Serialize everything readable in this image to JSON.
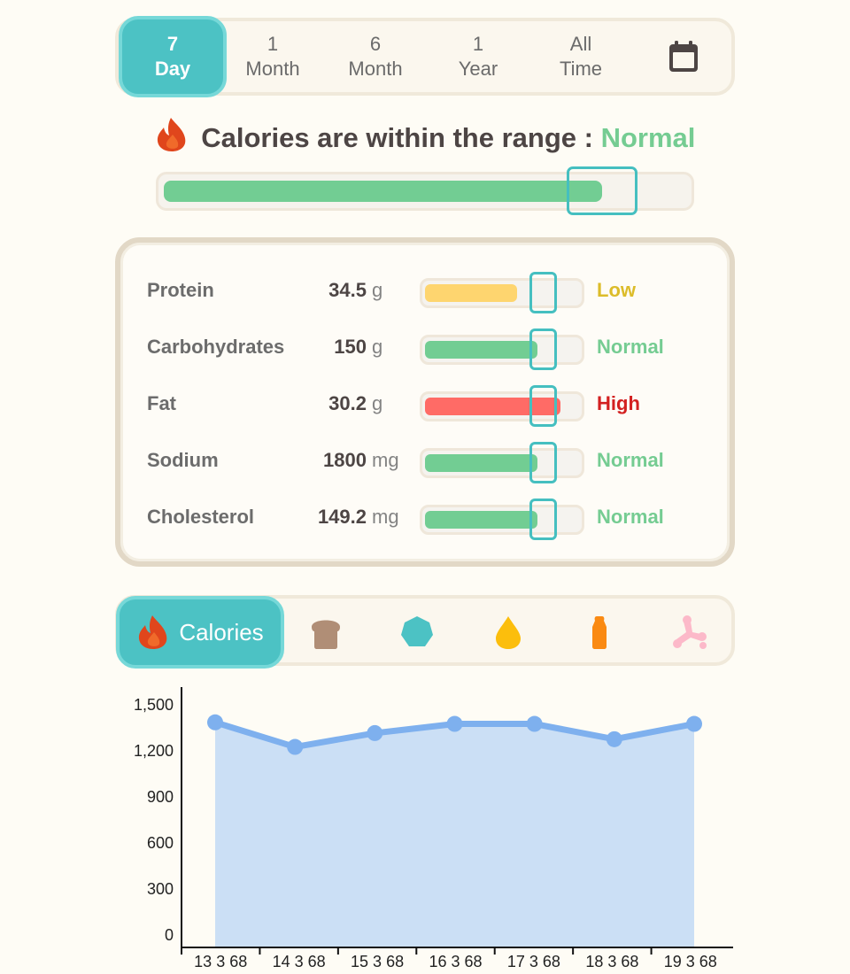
{
  "period_tabs": [
    {
      "top": "7",
      "bottom": "Day",
      "active": true
    },
    {
      "top": "1",
      "bottom": "Month",
      "active": false
    },
    {
      "top": "6",
      "bottom": "Month",
      "active": false
    },
    {
      "top": "1",
      "bottom": "Year",
      "active": false
    },
    {
      "top": "All",
      "bottom": "Time",
      "active": false
    }
  ],
  "calories_range": {
    "title": "Calories are within the range :",
    "status": "Normal",
    "status_color": "#75cc92",
    "fill_fraction": 0.83
  },
  "nutrients": [
    {
      "name": "Protein",
      "value": "34.5",
      "unit": "g",
      "status": "Low",
      "status_color": "#dcbc2a",
      "fill_color": "#fed56f",
      "fill_fraction": 0.6
    },
    {
      "name": "Carbohydrates",
      "value": "150",
      "unit": "g",
      "status": "Normal",
      "status_color": "#75cc92",
      "fill_color": "#72cd93",
      "fill_fraction": 0.73
    },
    {
      "name": "Fat",
      "value": "30.2",
      "unit": "g",
      "status": "High",
      "status_color": "#d32020",
      "fill_color": "#ff6b66",
      "fill_fraction": 0.88
    },
    {
      "name": "Sodium",
      "value": "1800",
      "unit": "mg",
      "status": "Normal",
      "status_color": "#75cc92",
      "fill_color": "#72cd93",
      "fill_fraction": 0.73
    },
    {
      "name": "Cholesterol",
      "value": "149.2",
      "unit": "mg",
      "status": "Normal",
      "status_color": "#75cc92",
      "fill_color": "#72cd93",
      "fill_fraction": 0.73
    }
  ],
  "metric_tabs": {
    "active_label": "Calories",
    "icons": [
      "bread-icon",
      "heptagon-icon",
      "drop-icon",
      "salt-shaker-icon",
      "bone-icon"
    ]
  },
  "chart_data": {
    "type": "area",
    "categories": [
      "13 3 68",
      "14 3 68",
      "15 3 68",
      "16 3 68",
      "17 3 68",
      "18 3 68",
      "19 3 68"
    ],
    "values": [
      1380,
      1220,
      1310,
      1370,
      1370,
      1270,
      1370
    ],
    "yticks": [
      "0",
      "300",
      "600",
      "900",
      "1,200",
      "1,500"
    ],
    "ylim": [
      0,
      1500
    ],
    "line_color": "#7eb0ee",
    "fill_color": "#cbdff5"
  }
}
